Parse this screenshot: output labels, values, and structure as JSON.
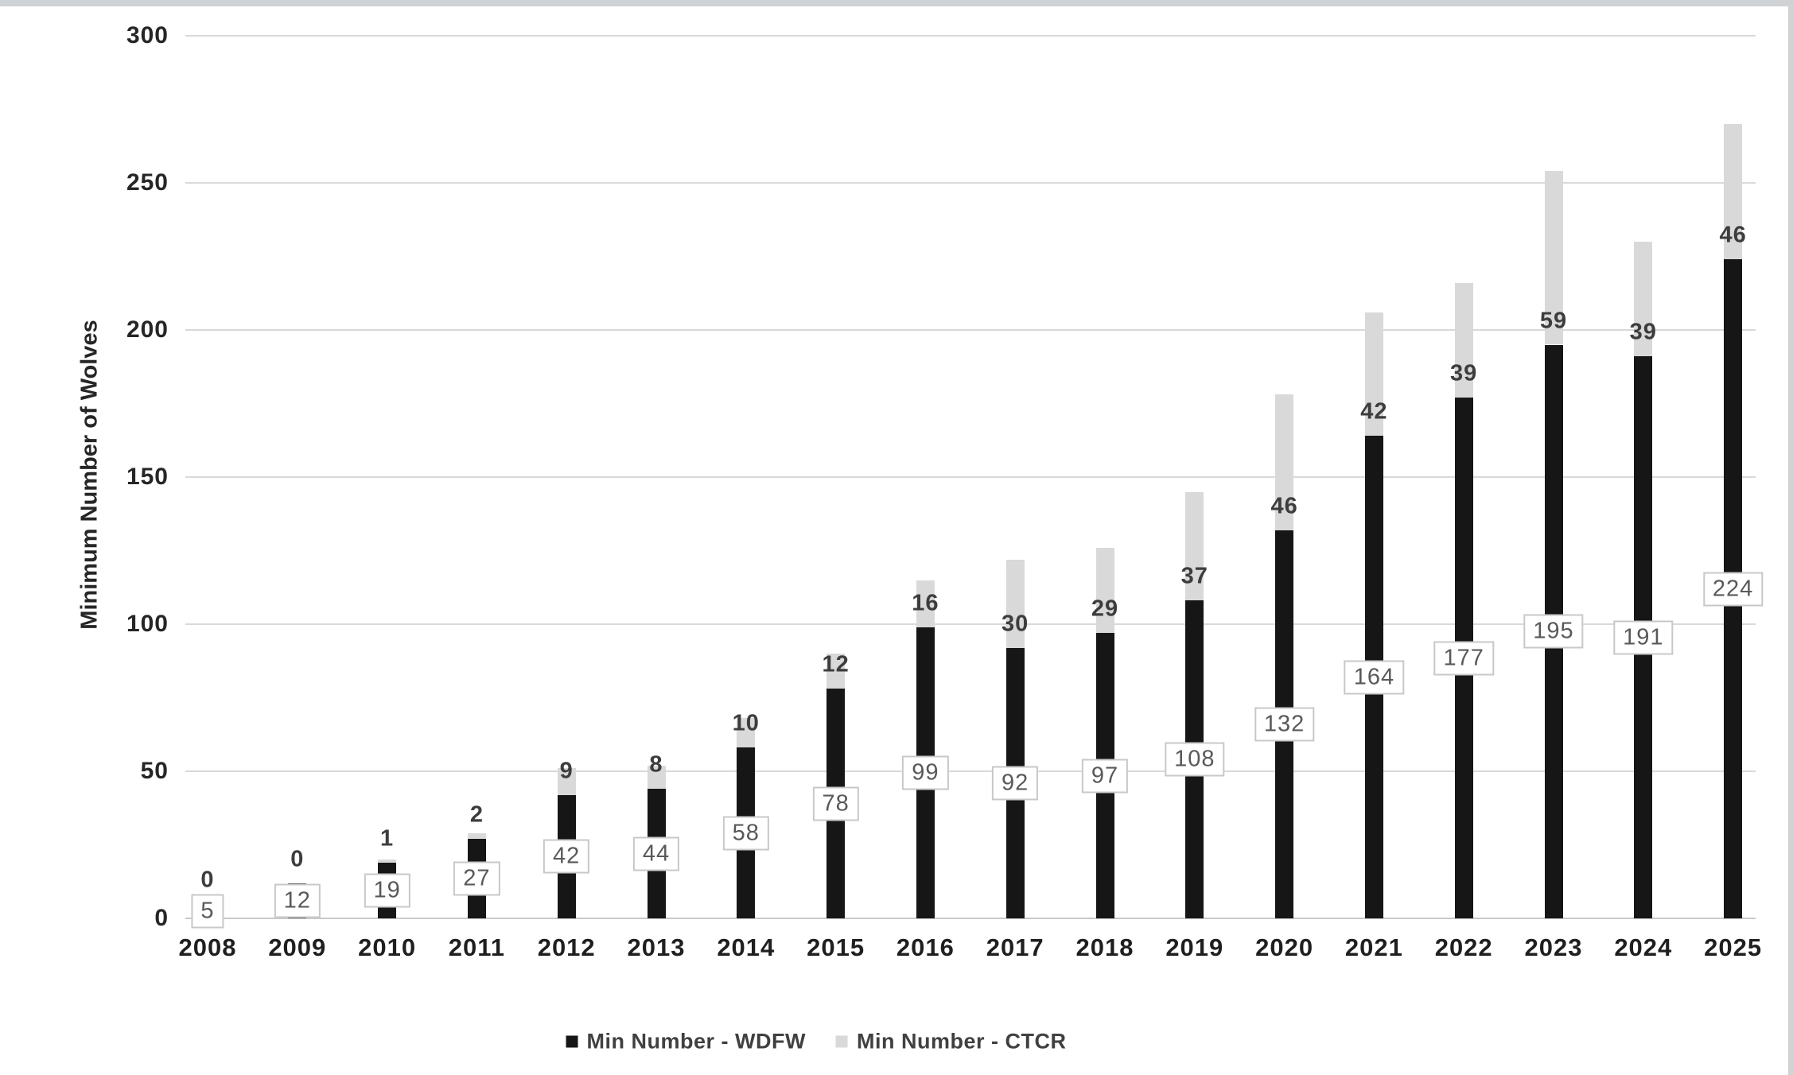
{
  "chart_data": {
    "type": "bar",
    "stacked": true,
    "categories": [
      "2008",
      "2009",
      "2010",
      "2011",
      "2012",
      "2013",
      "2014",
      "2015",
      "2016",
      "2017",
      "2018",
      "2019",
      "2020",
      "2021",
      "2022",
      "2023",
      "2024",
      "2025"
    ],
    "series": [
      {
        "name": "Min Number - WDFW",
        "color": "#161616",
        "values": [
          5,
          12,
          19,
          27,
          42,
          44,
          58,
          78,
          99,
          92,
          97,
          108,
          132,
          164,
          177,
          195,
          191,
          224
        ]
      },
      {
        "name": "Min Number - CTCR",
        "color": "#d9d9d9",
        "values": [
          0,
          0,
          1,
          2,
          9,
          8,
          10,
          12,
          16,
          30,
          29,
          37,
          46,
          42,
          39,
          59,
          39,
          46
        ]
      }
    ],
    "title": "",
    "xlabel": "",
    "ylabel": "Minimum Number of Wolves",
    "ylim": [
      0,
      300
    ],
    "yticks": [
      0,
      50,
      100,
      150,
      200,
      250,
      300
    ],
    "grid": "horizontal",
    "legend_position": "bottom",
    "data_labels": {
      "wdfw_style": "white box with gray border, centered inside black segment",
      "ctcr_style": "plain text at inside base of gray segment"
    }
  },
  "legend": {
    "wdfw_label": "Min Number - WDFW",
    "ctcr_label": "Min Number - CTCR"
  },
  "axis": {
    "y_title": "Minimum Number of Wolves"
  },
  "colors": {
    "wdfw_bar": "#161616",
    "ctcr_bar": "#d9d9d9",
    "gridline": "#d9d9d9",
    "box_border": "#c8c8c8",
    "box_text": "#595959"
  }
}
